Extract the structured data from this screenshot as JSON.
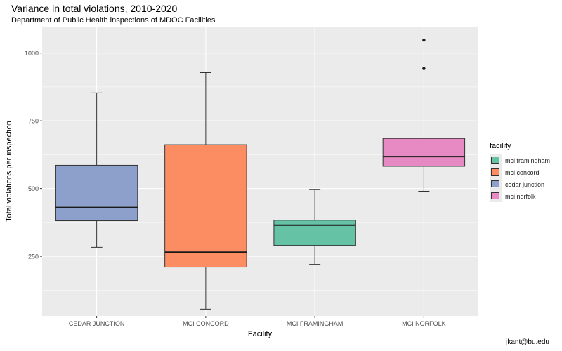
{
  "title": "Variance in total violations, 2010-2020",
  "subtitle": "Department of Public Health inspections of MDOC Facilities",
  "caption": "jkant@bu.edu",
  "colors": {
    "panel": "#ebebeb",
    "grid": "#ffffff",
    "box_outline": "#333333"
  },
  "legend": {
    "title": "facility",
    "items": [
      {
        "label": "mci framingham",
        "color": "#66c2a5"
      },
      {
        "label": "mci concord",
        "color": "#fc8d62"
      },
      {
        "label": "cedar junction",
        "color": "#8da0cb"
      },
      {
        "label": "mci norfolk",
        "color": "#e78ac3"
      }
    ]
  },
  "chart_data": {
    "type": "boxplot",
    "title": "Variance in total violations, 2010-2020",
    "subtitle": "Department of Public Health inspections of MDOC Facilities",
    "xlabel": "Facility",
    "ylabel": "Total violations per inspection",
    "ylim": [
      0,
      1100
    ],
    "yticks": [
      250,
      500,
      750,
      1000
    ],
    "ytick_labels": [
      "250",
      "500",
      "750",
      "1000"
    ],
    "grid": true,
    "legend_position": "right",
    "categories": [
      "CEDAR JUNCTION",
      "MCI CONCORD",
      "MCI FRAMINGHAM",
      "MCI NORFOLK"
    ],
    "boxes": [
      {
        "category": "CEDAR JUNCTION",
        "fill_key": "cedar junction",
        "color": "#8da0cb",
        "whisker_low": 283,
        "q1": 381,
        "median": 430,
        "q3": 586,
        "whisker_high": 853,
        "outliers": []
      },
      {
        "category": "MCI CONCORD",
        "fill_key": "mci concord",
        "color": "#fc8d62",
        "whisker_low": 55,
        "q1": 210,
        "median": 265,
        "q3": 662,
        "whisker_high": 928,
        "outliers": []
      },
      {
        "category": "MCI FRAMINGHAM",
        "fill_key": "mci framingham",
        "color": "#66c2a5",
        "whisker_low": 220,
        "q1": 290,
        "median": 365,
        "q3": 383,
        "whisker_high": 497,
        "outliers": []
      },
      {
        "category": "MCI NORFOLK",
        "fill_key": "mci norfolk",
        "color": "#e78ac3",
        "whisker_low": 490,
        "q1": 582,
        "median": 618,
        "q3": 685,
        "whisker_high": 685,
        "outliers": [
          943,
          1048
        ]
      }
    ]
  }
}
